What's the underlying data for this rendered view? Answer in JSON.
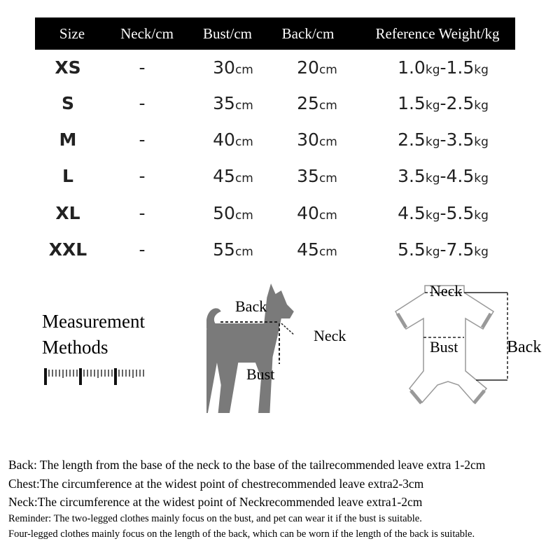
{
  "table": {
    "headers": [
      "Size",
      "Neck/cm",
      "Bust/cm",
      "Back/cm",
      "Reference Weight/kg"
    ],
    "rows": [
      {
        "size": "XS",
        "neck": "-",
        "bust": "30",
        "back": "20",
        "weight_from": "1.0",
        "weight_to": "1.5"
      },
      {
        "size": "S",
        "neck": "-",
        "bust": "35",
        "back": "25",
        "weight_from": "1.5",
        "weight_to": "2.5"
      },
      {
        "size": "M",
        "neck": "-",
        "bust": "40",
        "back": "30",
        "weight_from": "2.5",
        "weight_to": "3.5"
      },
      {
        "size": "L",
        "neck": "-",
        "bust": "45",
        "back": "35",
        "weight_from": "3.5",
        "weight_to": "4.5"
      },
      {
        "size": "XL",
        "neck": "-",
        "bust": "50",
        "back": "40",
        "weight_from": "4.5",
        "weight_to": "5.5"
      },
      {
        "size": "XXL",
        "neck": "-",
        "bust": "55",
        "back": "45",
        "weight_from": "5.5",
        "weight_to": "7.5"
      }
    ],
    "unit_cm": "cm",
    "unit_kg": "kg",
    "dash": "-"
  },
  "measurement": {
    "line1": "Measurement",
    "line2": "Methods"
  },
  "dog_labels": {
    "back": "Back",
    "neck": "Neck",
    "bust": "Bust"
  },
  "garment_labels": {
    "neck": "Neck",
    "bust": "Bust",
    "back": "Back"
  },
  "notes": [
    "Back: The length from the base of the neck to the base of the tailrecommended leave extra 1-2cm",
    "Chest:The circumference at the widest point of chestrecommended leave extra2-3cm",
    "Neck:The circumference at the widest point of Neckrecommended leave extra1-2cm",
    "Reminder: The two-legged clothes mainly focus on the bust, and pet can wear it if the bust is suitable.",
    "Four-legged clothes mainly focus on the length of the back, which can be worn if the length of the back is  suitable."
  ],
  "colors": {
    "header_bg": "#000000",
    "dog": "#7a7a7a"
  }
}
